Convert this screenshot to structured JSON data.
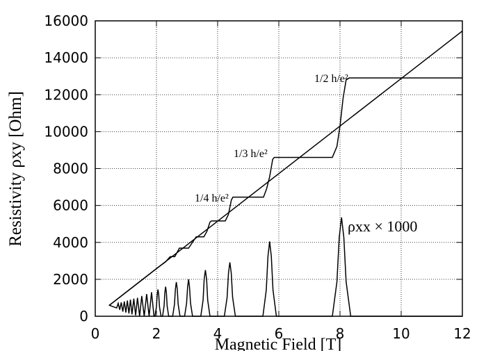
{
  "chart_data": {
    "type": "line",
    "xlabel": "Magnetic Field [T]",
    "ylabel": "Resistivity ρxy [Ohm]",
    "xlim": [
      0,
      12
    ],
    "xticks": [
      0,
      2,
      4,
      6,
      8,
      10,
      12
    ],
    "ylim": [
      0,
      16000
    ],
    "yticks": [
      0,
      2000,
      4000,
      6000,
      8000,
      10000,
      12000,
      14000,
      16000
    ],
    "grid": true,
    "series": [
      {
        "color": "#000000",
        "x": [
          0.45,
          12
        ],
        "values": [
          580,
          15450
        ]
      },
      {
        "color": "#000000",
        "x": [
          0.45,
          1.0,
          1.5,
          2.0,
          2.3,
          2.45,
          2.6,
          2.75,
          3.05,
          3.3,
          3.55,
          3.65,
          3.75,
          3.8,
          4.25,
          4.35,
          4.45,
          4.5,
          5.5,
          5.6,
          5.7,
          5.8,
          5.85,
          7.75,
          7.9,
          8.0,
          8.1,
          8.2,
          8.3,
          12
        ],
        "values": [
          580,
          1290,
          1935,
          2580,
          2950,
          3227,
          3227,
          3688,
          3688,
          4302,
          4302,
          4600,
          5100,
          5163,
          5163,
          5500,
          6300,
          6453,
          6453,
          6900,
          7550,
          8500,
          8604,
          8604,
          9200,
          10300,
          11800,
          12800,
          12906,
          12906
        ]
      },
      {
        "color": "#000000",
        "x": [
          0.45,
          0.7,
          0.75,
          0.8,
          0.85,
          0.9,
          0.95,
          1.0,
          1.05,
          1.1,
          1.15,
          1.2,
          1.26,
          1.32,
          1.38,
          1.45,
          1.52,
          1.6,
          1.68,
          1.76,
          1.84,
          1.92,
          1.95,
          2.0,
          2.025,
          2.05,
          2.075,
          2.1,
          2.15,
          2.2,
          2.25,
          2.275,
          2.3,
          2.325,
          2.35,
          2.4,
          2.53,
          2.59,
          2.62,
          2.65,
          2.68,
          2.71,
          2.77,
          2.92,
          2.985,
          3.02,
          3.05,
          3.08,
          3.115,
          3.18,
          3.45,
          3.525,
          3.56,
          3.6,
          3.64,
          3.675,
          3.75,
          4.22,
          4.31,
          4.355,
          4.4,
          4.445,
          4.49,
          4.58,
          5.48,
          5.59,
          5.645,
          5.7,
          5.755,
          5.81,
          5.92,
          7.75,
          7.9,
          7.975,
          8.05,
          8.125,
          8.2,
          8.35,
          12
        ],
        "values": [
          600,
          450,
          700,
          350,
          750,
          250,
          800,
          200,
          850,
          150,
          900,
          100,
          950,
          50,
          1000,
          0,
          1100,
          0,
          1200,
          0,
          1300,
          0,
          0,
          510,
          1160,
          1450,
          1160,
          510,
          0,
          0,
          560,
          1280,
          1600,
          1280,
          560,
          0,
          0,
          650,
          1480,
          1850,
          1480,
          650,
          0,
          0,
          700,
          1600,
          2000,
          1600,
          700,
          0,
          0,
          875,
          2000,
          2500,
          2000,
          875,
          0,
          0,
          1020,
          2340,
          2920,
          2340,
          1020,
          0,
          0,
          1420,
          3240,
          4050,
          3240,
          1420,
          0,
          0,
          1870,
          4280,
          5350,
          4280,
          1870,
          0,
          0
        ]
      }
    ],
    "annotations": [
      "1/2 h/e²",
      "1/3 h/e²",
      "1/4 h/e²",
      "ρxx × 1000"
    ]
  }
}
